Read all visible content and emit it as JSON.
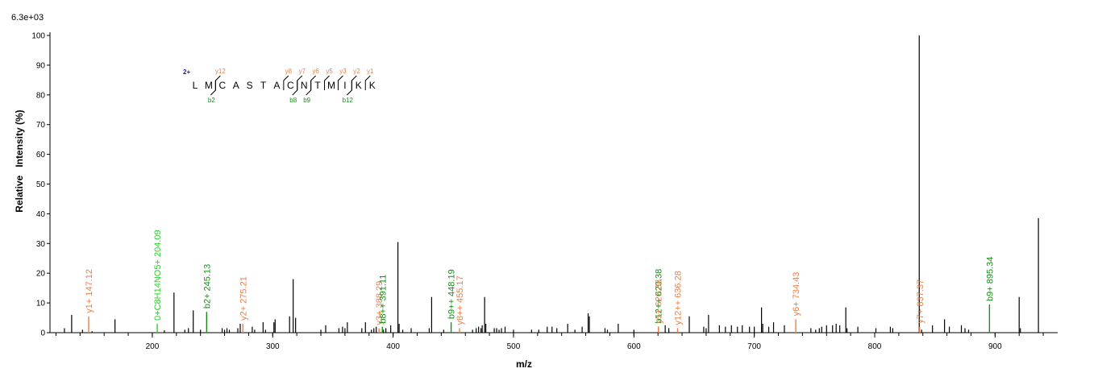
{
  "chart_data": {
    "type": "bar",
    "intensity_max_label": "6.3e+03",
    "xlabel": "m/z",
    "ylabel": "Relative   Intensity (%)",
    "xlim": [
      115,
      952
    ],
    "ylim": [
      0,
      100
    ],
    "x_ticks": [
      200,
      300,
      400,
      500,
      600,
      700,
      800,
      900
    ],
    "y_ticks": [
      0,
      10,
      20,
      30,
      40,
      50,
      60,
      70,
      80,
      90,
      100
    ],
    "colors": {
      "y_ion": "#E8804A",
      "b_ion": "#1A8C1A",
      "neutral_loss": "#33CC33",
      "precursor": "#1A1A99",
      "peak": "#000000"
    },
    "annotated_peaks": [
      {
        "mz": 147.12,
        "intensity": 5.5,
        "label": "y1+ 147.12",
        "ion": "y_ion"
      },
      {
        "mz": 204.09,
        "intensity": 3.0,
        "label": "0+C8H14NO5+ 204.09",
        "ion": "neutral_loss"
      },
      {
        "mz": 245.13,
        "intensity": 7.0,
        "label": "b2+ 245.13",
        "ion": "b_ion"
      },
      {
        "mz": 275.21,
        "intensity": 3.0,
        "label": "y2+ 275.21",
        "ion": "y_ion"
      },
      {
        "mz": 388.29,
        "intensity": 1.5,
        "label": "y3+ 388.29",
        "ion": "y_ion"
      },
      {
        "mz": 391.11,
        "intensity": 2.0,
        "label": "b8++ 391.11",
        "ion": "b_ion"
      },
      {
        "mz": 448.19,
        "intensity": 3.5,
        "label": "b9++ 448.19",
        "ion": "b_ion"
      },
      {
        "mz": 455.17,
        "intensity": 1.5,
        "label": "y8++ 455.17",
        "ion": "y_ion"
      },
      {
        "mz": 620.38,
        "intensity": 2.0,
        "label": "b12++ 620.38",
        "ion": "b_ion"
      },
      {
        "mz": 620.38,
        "intensity": 2.0,
        "label": "y5+ 620.38",
        "ion": "y_ion"
      },
      {
        "mz": 636.28,
        "intensity": 1.5,
        "label": "y12++ 636.28",
        "ion": "y_ion"
      },
      {
        "mz": 734.43,
        "intensity": 4.5,
        "label": "y6+ 734.43",
        "ion": "y_ion"
      },
      {
        "mz": 837.37,
        "intensity": 2.0,
        "label": "y7+ 837.37",
        "ion": "y_ion"
      },
      {
        "mz": 895.34,
        "intensity": 9.5,
        "label": "b9+ 895.34",
        "ion": "b_ion"
      }
    ],
    "peaks": [
      [
        127,
        1.5
      ],
      [
        133,
        6
      ],
      [
        142,
        1
      ],
      [
        150,
        0.5
      ],
      [
        169,
        4.5
      ],
      [
        210,
        0.8
      ],
      [
        218,
        13.5
      ],
      [
        227,
        1
      ],
      [
        230,
        1.5
      ],
      [
        234,
        7.5
      ],
      [
        240,
        1
      ],
      [
        258,
        1.5
      ],
      [
        260,
        1
      ],
      [
        262,
        1.5
      ],
      [
        264,
        1
      ],
      [
        271,
        1.5
      ],
      [
        273,
        3
      ],
      [
        283,
        2
      ],
      [
        285,
        1
      ],
      [
        292,
        3.5
      ],
      [
        294,
        1
      ],
      [
        301,
        3.5
      ],
      [
        302,
        4.5
      ],
      [
        314,
        5.5
      ],
      [
        317,
        18
      ],
      [
        319,
        5
      ],
      [
        340,
        1
      ],
      [
        344,
        2.5
      ],
      [
        355,
        1.5
      ],
      [
        358,
        2
      ],
      [
        360,
        1.5
      ],
      [
        362,
        3.5
      ],
      [
        374,
        1.5
      ],
      [
        377,
        3.5
      ],
      [
        382,
        1
      ],
      [
        384,
        1.5
      ],
      [
        386,
        2
      ],
      [
        392,
        1
      ],
      [
        394,
        1.5
      ],
      [
        398,
        2.5
      ],
      [
        404,
        30.5
      ],
      [
        405,
        3
      ],
      [
        408,
        1
      ],
      [
        415,
        1.5
      ],
      [
        430,
        1.5
      ],
      [
        432,
        12
      ],
      [
        442,
        1
      ],
      [
        466,
        1
      ],
      [
        469,
        1.5
      ],
      [
        471,
        2
      ],
      [
        473,
        1.5
      ],
      [
        474,
        2.5
      ],
      [
        476,
        12
      ],
      [
        477,
        3
      ],
      [
        484,
        1.5
      ],
      [
        486,
        1.5
      ],
      [
        488,
        1
      ],
      [
        490,
        1.5
      ],
      [
        493,
        2
      ],
      [
        500,
        1
      ],
      [
        515,
        1
      ],
      [
        521,
        1
      ],
      [
        528,
        2
      ],
      [
        532,
        2
      ],
      [
        536,
        1.5
      ],
      [
        545,
        3
      ],
      [
        551,
        1
      ],
      [
        557,
        2
      ],
      [
        562,
        6.5
      ],
      [
        563,
        5.5
      ],
      [
        576,
        1.5
      ],
      [
        578,
        1
      ],
      [
        587,
        3
      ],
      [
        600,
        1
      ],
      [
        626,
        2.5
      ],
      [
        629,
        1.5
      ],
      [
        646,
        5.5
      ],
      [
        658,
        2
      ],
      [
        660,
        1.5
      ],
      [
        662,
        6
      ],
      [
        671,
        2.5
      ],
      [
        676,
        2
      ],
      [
        681,
        2.5
      ],
      [
        686,
        2
      ],
      [
        690,
        2.5
      ],
      [
        696,
        2
      ],
      [
        700,
        2
      ],
      [
        706,
        8.5
      ],
      [
        707,
        3
      ],
      [
        712,
        2
      ],
      [
        716,
        3.5
      ],
      [
        725,
        2.5
      ],
      [
        747,
        1.5
      ],
      [
        751,
        1
      ],
      [
        754,
        1.5
      ],
      [
        756,
        2
      ],
      [
        760,
        2.5
      ],
      [
        765,
        2.5
      ],
      [
        768,
        3
      ],
      [
        771,
        2.5
      ],
      [
        776,
        8.5
      ],
      [
        777,
        1.5
      ],
      [
        786,
        2
      ],
      [
        801,
        1.5
      ],
      [
        813,
        2
      ],
      [
        815,
        1.5
      ],
      [
        837,
        100
      ],
      [
        839,
        1
      ],
      [
        848,
        2.5
      ],
      [
        858,
        4.5
      ],
      [
        862,
        2
      ],
      [
        872,
        2.5
      ],
      [
        875,
        1.5
      ],
      [
        878,
        1
      ],
      [
        920,
        12
      ],
      [
        921,
        1.5
      ],
      [
        936,
        38.5
      ]
    ]
  },
  "sequence": {
    "charge": "2+",
    "residues": [
      "L",
      "M",
      "C",
      "A",
      "S",
      "T",
      "A",
      "C",
      "N",
      "T",
      "M",
      "I",
      "K",
      "K"
    ],
    "y_ions": [
      {
        "after": 2,
        "label": "y12"
      },
      {
        "after": 7,
        "label": "y8"
      },
      {
        "after": 8,
        "label": "y7"
      },
      {
        "after": 9,
        "label": "y6"
      },
      {
        "after": 10,
        "label": "y5"
      },
      {
        "after": 11,
        "label": "y3"
      },
      {
        "after": 12,
        "label": "y2"
      },
      {
        "after": 13,
        "label": "y1"
      }
    ],
    "b_ions": [
      {
        "after": 2,
        "label": "b2"
      },
      {
        "after": 8,
        "label": "b8"
      },
      {
        "after": 9,
        "label": "b9"
      },
      {
        "after": 12,
        "label": "b12"
      }
    ]
  }
}
